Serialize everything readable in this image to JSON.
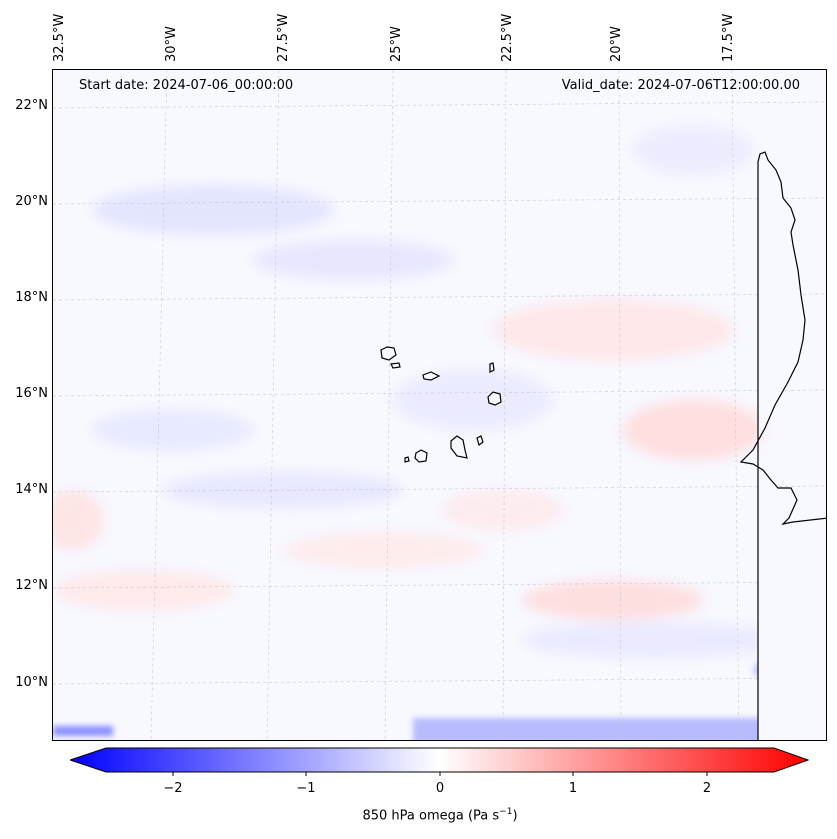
{
  "map": {
    "start_date_label": "Start date: 2024-07-06_00:00:00",
    "valid_date_label": "Valid_date: 2024-07-06T12:00:00.00",
    "lon_labels": [
      "32.5°W",
      "30°W",
      "27.5°W",
      "25°W",
      "22.5°W",
      "20°W",
      "17.5°W"
    ],
    "lat_labels": [
      "22°N",
      "20°N",
      "18°N",
      "16°N",
      "14°N",
      "12°N",
      "10°N"
    ],
    "variable": "850 hPa omega",
    "units": "(Pa s",
    "units_exp": "−1",
    "units_close": ")",
    "colorbar_ticks": [
      "−2",
      "−1",
      "0",
      "1",
      "2"
    ],
    "colorbar_range": [
      -2.75,
      2.75
    ],
    "colors": {
      "negative": "#0000ff",
      "neutral": "#ffffff",
      "positive": "#ff0000",
      "coast": "#000000"
    }
  }
}
